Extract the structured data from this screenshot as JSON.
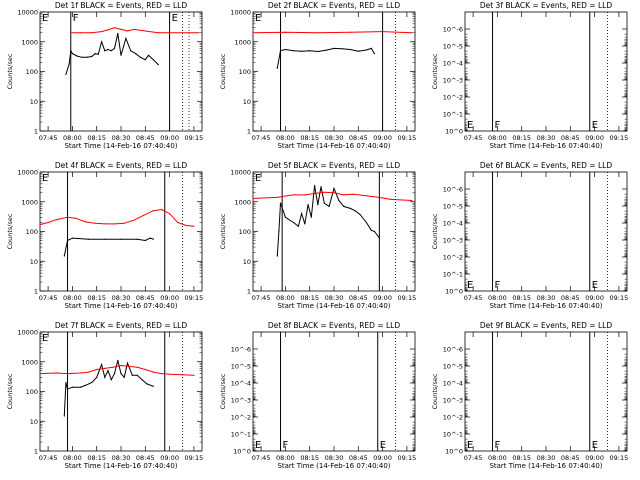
{
  "figure": {
    "panels_per_row": 3,
    "colors": {
      "events": "#000000",
      "lld": "#ff0000",
      "axes": "#000000"
    }
  },
  "chart_data": [
    {
      "type": "line",
      "title": "Det 1f BLACK = Events, RED = LLD",
      "xlabel": "Start Time (14-Feb-16 07:40:40)",
      "ylabel": "Counts/sec",
      "scale": "log",
      "ylim": [
        1,
        10000
      ],
      "yticks": [
        1,
        10,
        100,
        1000,
        10000
      ],
      "ytick_labels": [
        "1",
        "10",
        "100",
        "1000",
        "10000"
      ],
      "x_range": [
        "07:40",
        "09:20"
      ],
      "xticks": [
        "07:45",
        "08:00",
        "08:15",
        "08:30",
        "08:45",
        "09:00",
        "09:15"
      ],
      "markers": [
        {
          "time": "07:59",
          "label": "F",
          "style": "solid"
        },
        {
          "time": "09:00",
          "label": "E",
          "style": "solid"
        },
        {
          "time": "09:08",
          "label": "",
          "style": "dotted"
        },
        {
          "time": "09:12",
          "label": "",
          "style": "dotted"
        }
      ],
      "corner_label": {
        "text": "E",
        "position": "top"
      },
      "series": [
        {
          "name": "BLACK = Events",
          "color": "#000000",
          "x": [
            "07:56",
            "07:58",
            "07:59",
            "08:00",
            "08:03",
            "08:06",
            "08:09",
            "08:12",
            "08:14",
            "08:16",
            "08:18",
            "08:20",
            "08:22",
            "08:24",
            "08:26",
            "08:28",
            "08:30",
            "08:33",
            "08:36",
            "08:39",
            "08:42",
            "08:45",
            "08:47",
            "08:50",
            "08:53"
          ],
          "values": [
            80,
            180,
            500,
            400,
            330,
            300,
            300,
            320,
            400,
            380,
            1000,
            500,
            550,
            500,
            600,
            1900,
            350,
            1300,
            500,
            400,
            300,
            250,
            350,
            250,
            170
          ]
        },
        {
          "name": "RED = LLD",
          "color": "#ff0000",
          "x": [
            "07:59",
            "08:05",
            "08:12",
            "08:18",
            "08:22",
            "08:26",
            "08:30",
            "08:34",
            "08:38",
            "08:45",
            "08:53",
            "09:00",
            "09:18"
          ],
          "values": [
            2000,
            2000,
            2000,
            2200,
            2500,
            3000,
            2600,
            2300,
            2600,
            2300,
            2000,
            2000,
            2000
          ]
        }
      ]
    },
    {
      "type": "line",
      "title": "Det 2f BLACK = Events, RED = LLD",
      "xlabel": "Start Time (14-Feb-16 07:40:40)",
      "ylabel": "Counts/sec",
      "scale": "log",
      "ylim": [
        1,
        10000
      ],
      "yticks": [
        1,
        10,
        100,
        1000,
        10000
      ],
      "ytick_labels": [
        "1",
        "10",
        "100",
        "1000",
        "10000"
      ],
      "x_range": [
        "07:40",
        "09:20"
      ],
      "xticks": [
        "07:45",
        "08:00",
        "08:15",
        "08:30",
        "08:45",
        "09:00",
        "09:15"
      ],
      "markers": [
        {
          "time": "07:57",
          "label": "",
          "style": "solid"
        },
        {
          "time": "09:00",
          "label": "",
          "style": "solid"
        },
        {
          "time": "09:08",
          "label": "",
          "style": "dotted"
        }
      ],
      "corner_label": {
        "text": "E",
        "position": "top"
      },
      "series": [
        {
          "name": "BLACK = Events",
          "color": "#000000",
          "x": [
            "07:55",
            "07:57",
            "08:00",
            "08:05",
            "08:10",
            "08:15",
            "08:20",
            "08:25",
            "08:30",
            "08:35",
            "08:40",
            "08:45",
            "08:50",
            "08:53",
            "08:55"
          ],
          "values": [
            130,
            500,
            550,
            500,
            480,
            500,
            470,
            520,
            600,
            580,
            550,
            480,
            530,
            600,
            400
          ]
        },
        {
          "name": "RED = LLD",
          "color": "#ff0000",
          "x": [
            "07:40",
            "08:00",
            "08:20",
            "08:40",
            "09:00",
            "09:18"
          ],
          "values": [
            2000,
            2100,
            2000,
            2100,
            2200,
            2000
          ]
        }
      ]
    },
    {
      "type": "line",
      "title": "Det 3f BLACK = Events, RED = LLD",
      "xlabel": "Start Time (14-Feb-16 07:40:40)",
      "ylabel": "Counts/sec",
      "scale": "log",
      "ylim": [
        1,
        1e-07
      ],
      "yticks": [
        1,
        0.1,
        0.01,
        0.001,
        0.0001,
        1e-05,
        1e-06
      ],
      "ytick_labels": [
        "10^0",
        "10^-1",
        "10^-2",
        "10^-3",
        "10^-4",
        "10^-5",
        "10^-6"
      ],
      "x_range": [
        "07:40",
        "09:20"
      ],
      "xticks": [
        "07:45",
        "08:00",
        "08:15",
        "08:30",
        "08:45",
        "09:00",
        "09:15"
      ],
      "markers": [
        {
          "time": "07:57",
          "label": "F",
          "style": "solid"
        },
        {
          "time": "08:57",
          "label": "E",
          "style": "solid"
        },
        {
          "time": "09:08",
          "label": "",
          "style": "dotted"
        }
      ],
      "corner_label": {
        "text": "E",
        "position": "bottom"
      },
      "series": []
    },
    {
      "type": "line",
      "title": "Det 4f BLACK = Events, RED = LLD",
      "xlabel": "Start Time (14-Feb-16 07:40:40)",
      "ylabel": "Counts/sec",
      "scale": "log",
      "ylim": [
        1,
        10000
      ],
      "yticks": [
        1,
        10,
        100,
        1000,
        10000
      ],
      "ytick_labels": [
        "1",
        "10",
        "100",
        "1000",
        "10000"
      ],
      "x_range": [
        "07:40",
        "09:20"
      ],
      "xticks": [
        "07:45",
        "08:00",
        "08:15",
        "08:30",
        "08:45",
        "09:00",
        "09:15"
      ],
      "markers": [
        {
          "time": "07:57",
          "label": "",
          "style": "solid"
        },
        {
          "time": "08:57",
          "label": "",
          "style": "solid"
        },
        {
          "time": "09:08",
          "label": "",
          "style": "dotted"
        }
      ],
      "corner_label": {
        "text": "E",
        "position": "top"
      },
      "series": [
        {
          "name": "BLACK = Events",
          "color": "#000000",
          "x": [
            "07:55",
            "07:57",
            "08:00",
            "08:10",
            "08:20",
            "08:30",
            "08:40",
            "08:45",
            "08:48",
            "08:50"
          ],
          "values": [
            15,
            50,
            60,
            55,
            55,
            55,
            55,
            50,
            60,
            55
          ]
        },
        {
          "name": "RED = LLD",
          "color": "#ff0000",
          "x": [
            "07:40",
            "07:45",
            "07:50",
            "07:57",
            "08:02",
            "08:08",
            "08:14",
            "08:20",
            "08:26",
            "08:32",
            "08:38",
            "08:44",
            "08:50",
            "08:55",
            "09:00",
            "09:05",
            "09:10",
            "09:15"
          ],
          "values": [
            170,
            200,
            250,
            300,
            280,
            210,
            190,
            180,
            180,
            190,
            240,
            350,
            500,
            550,
            400,
            200,
            160,
            150
          ]
        }
      ]
    },
    {
      "type": "line",
      "title": "Det 5f BLACK = Events, RED = LLD",
      "xlabel": "Start Time (14-Feb-16 07:40:40)",
      "ylabel": "Counts/sec",
      "scale": "log",
      "ylim": [
        1,
        10000
      ],
      "yticks": [
        1,
        10,
        100,
        1000,
        10000
      ],
      "ytick_labels": [
        "1",
        "10",
        "100",
        "1000",
        "10000"
      ],
      "x_range": [
        "07:40",
        "09:20"
      ],
      "xticks": [
        "07:45",
        "08:00",
        "08:15",
        "08:30",
        "08:45",
        "09:00",
        "09:15"
      ],
      "markers": [
        {
          "time": "07:58",
          "label": "",
          "style": "solid"
        },
        {
          "time": "08:58",
          "label": "",
          "style": "solid"
        },
        {
          "time": "09:08",
          "label": "",
          "style": "dotted"
        }
      ],
      "corner_label": {
        "text": "E",
        "position": "top"
      },
      "series": [
        {
          "name": "BLACK = Events",
          "color": "#000000",
          "x": [
            "07:55",
            "07:56",
            "07:57",
            "08:00",
            "08:05",
            "08:08",
            "08:10",
            "08:12",
            "08:14",
            "08:16",
            "08:18",
            "08:20",
            "08:22",
            "08:24",
            "08:27",
            "08:30",
            "08:33",
            "08:36",
            "08:40",
            "08:43",
            "08:46",
            "08:50",
            "08:53",
            "08:55",
            "08:58"
          ],
          "values": [
            15,
            100,
            900,
            300,
            200,
            150,
            400,
            180,
            800,
            300,
            3500,
            800,
            3200,
            900,
            700,
            2800,
            1100,
            700,
            600,
            500,
            380,
            200,
            110,
            100,
            60
          ]
        },
        {
          "name": "RED = LLD",
          "color": "#ff0000",
          "x": [
            "07:40",
            "07:55",
            "07:58",
            "08:05",
            "08:12",
            "08:18",
            "08:24",
            "08:30",
            "08:36",
            "08:42",
            "08:50",
            "08:58",
            "09:05",
            "09:18"
          ],
          "values": [
            1300,
            1400,
            1500,
            1700,
            1700,
            1900,
            2100,
            2000,
            1700,
            1800,
            1600,
            1400,
            1200,
            1100
          ]
        }
      ]
    },
    {
      "type": "line",
      "title": "Det 6f BLACK = Events, RED = LLD",
      "xlabel": "Start Time (14-Feb-16 07:40:40)",
      "ylabel": "Counts/sec",
      "scale": "log",
      "ylim": [
        1,
        1e-07
      ],
      "yticks": [
        1,
        0.1,
        0.01,
        0.001,
        0.0001,
        1e-05,
        1e-06
      ],
      "ytick_labels": [
        "10^0",
        "10^-1",
        "10^-2",
        "10^-3",
        "10^-4",
        "10^-5",
        "10^-6"
      ],
      "x_range": [
        "07:40",
        "09:20"
      ],
      "xticks": [
        "07:45",
        "08:00",
        "08:15",
        "08:30",
        "08:45",
        "09:00",
        "09:15"
      ],
      "markers": [
        {
          "time": "07:57",
          "label": "F",
          "style": "solid"
        },
        {
          "time": "08:57",
          "label": "E",
          "style": "solid"
        },
        {
          "time": "09:08",
          "label": "",
          "style": "dotted"
        }
      ],
      "corner_label": {
        "text": "E",
        "position": "bottom"
      },
      "series": []
    },
    {
      "type": "line",
      "title": "Det 7f BLACK = Events, RED = LLD",
      "xlabel": "Start Time (14-Feb-16 07:40:40)",
      "ylabel": "Counts/sec",
      "scale": "log",
      "ylim": [
        1,
        10000
      ],
      "yticks": [
        1,
        10,
        100,
        1000,
        10000
      ],
      "ytick_labels": [
        "1",
        "10",
        "100",
        "1000",
        "10000"
      ],
      "x_range": [
        "07:40",
        "09:20"
      ],
      "xticks": [
        "07:45",
        "08:00",
        "08:15",
        "08:30",
        "08:45",
        "09:00",
        "09:15"
      ],
      "markers": [
        {
          "time": "07:57",
          "label": "",
          "style": "solid"
        },
        {
          "time": "08:57",
          "label": "",
          "style": "solid"
        },
        {
          "time": "09:08",
          "label": "",
          "style": "dotted"
        }
      ],
      "corner_label": {
        "text": "E",
        "position": "top"
      },
      "series": [
        {
          "name": "BLACK = Events",
          "color": "#000000",
          "x": [
            "07:55",
            "07:56",
            "07:57",
            "08:00",
            "08:05",
            "08:08",
            "08:12",
            "08:15",
            "08:18",
            "08:20",
            "08:22",
            "08:24",
            "08:26",
            "08:28",
            "08:30",
            "08:32",
            "08:34",
            "08:37",
            "08:40",
            "08:43",
            "08:46",
            "08:50"
          ],
          "values": [
            15,
            200,
            120,
            140,
            140,
            160,
            200,
            300,
            800,
            300,
            500,
            250,
            400,
            1100,
            400,
            300,
            900,
            350,
            350,
            250,
            180,
            150
          ]
        },
        {
          "name": "RED = LLD",
          "color": "#ff0000",
          "x": [
            "07:40",
            "07:50",
            "07:57",
            "08:05",
            "08:10",
            "08:15",
            "08:20",
            "08:25",
            "08:30",
            "08:35",
            "08:40",
            "08:45",
            "08:50",
            "08:55",
            "09:00",
            "09:15"
          ],
          "values": [
            400,
            420,
            400,
            420,
            450,
            550,
            600,
            650,
            750,
            700,
            650,
            550,
            450,
            400,
            380,
            350
          ]
        }
      ]
    },
    {
      "type": "line",
      "title": "Det 8f BLACK = Events, RED = LLD",
      "xlabel": "Start Time (14-Feb-16 07:40:40)",
      "ylabel": "Counts/sec",
      "scale": "log",
      "ylim": [
        1,
        1e-07
      ],
      "yticks": [
        1,
        0.1,
        0.01,
        0.001,
        0.0001,
        1e-05,
        1e-06
      ],
      "ytick_labels": [
        "10^0",
        "10^-1",
        "10^-2",
        "10^-3",
        "10^-4",
        "10^-5",
        "10^-6"
      ],
      "x_range": [
        "07:40",
        "09:20"
      ],
      "xticks": [
        "07:45",
        "08:00",
        "08:15",
        "08:30",
        "08:45",
        "09:00",
        "09:15"
      ],
      "markers": [
        {
          "time": "07:57",
          "label": "F",
          "style": "solid"
        },
        {
          "time": "08:57",
          "label": "E",
          "style": "solid"
        },
        {
          "time": "09:08",
          "label": "",
          "style": "dotted"
        }
      ],
      "corner_label": {
        "text": "E",
        "position": "bottom"
      },
      "series": []
    },
    {
      "type": "line",
      "title": "Det 9f BLACK = Events, RED = LLD",
      "xlabel": "Start Time (14-Feb-16 07:40:40)",
      "ylabel": "Counts/sec",
      "scale": "log",
      "ylim": [
        1,
        1e-07
      ],
      "yticks": [
        1,
        0.1,
        0.01,
        0.001,
        0.0001,
        1e-05,
        1e-06
      ],
      "ytick_labels": [
        "10^0",
        "10^-1",
        "10^-2",
        "10^-3",
        "10^-4",
        "10^-5",
        "10^-6"
      ],
      "x_range": [
        "07:40",
        "09:20"
      ],
      "xticks": [
        "07:45",
        "08:00",
        "08:15",
        "08:30",
        "08:45",
        "09:00",
        "09:15"
      ],
      "markers": [
        {
          "time": "07:57",
          "label": "F",
          "style": "solid"
        },
        {
          "time": "08:57",
          "label": "E",
          "style": "solid"
        },
        {
          "time": "09:08",
          "label": "",
          "style": "dotted"
        }
      ],
      "corner_label": {
        "text": "E",
        "position": "bottom"
      },
      "series": []
    }
  ]
}
